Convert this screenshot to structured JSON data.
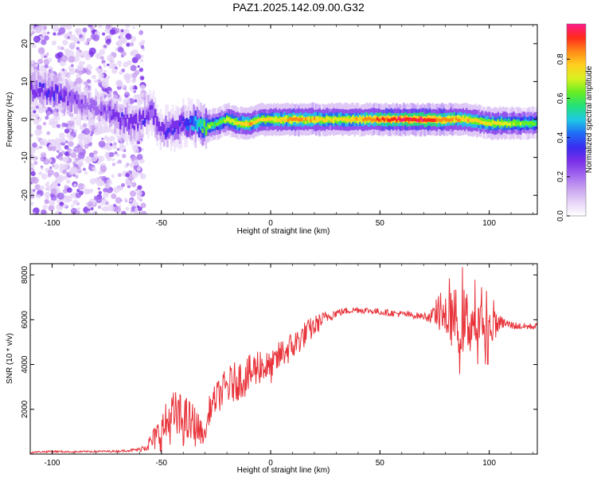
{
  "title": "PAZ1.2025.142.09.00.G32",
  "colors": {
    "snr_line": "#e8333a",
    "colormap": [
      "#ffffff",
      "#e6d4f7",
      "#c8a0f0",
      "#a066f0",
      "#7a2fe8",
      "#3a2cf0",
      "#1f6cf5",
      "#1fc8e6",
      "#22e07a",
      "#66ee22",
      "#d8f020",
      "#ffd020",
      "#ff8a18",
      "#ff2a1a",
      "#ff1a8a"
    ]
  },
  "chart_data": [
    {
      "type": "heatmap",
      "xlabel": "Height of straight line (km)",
      "ylabel": "Frequency (Hz)",
      "xlim": [
        -110,
        122
      ],
      "ylim": [
        -25,
        25
      ],
      "xticks": [
        -100,
        -50,
        0,
        50,
        100
      ],
      "yticks": [
        -20,
        -10,
        0,
        10,
        20
      ],
      "colorbar": {
        "label": "Normalized spectral amplitude",
        "range": [
          0,
          0.98
        ],
        "ticks": [
          "0.0",
          "0.2",
          "0.4",
          "0.6",
          "0.8"
        ]
      },
      "ridge": {
        "x": [
          -108,
          -100,
          -95,
          -85,
          -75,
          -70,
          -62,
          -55,
          -50,
          -45,
          -40,
          -35,
          -30,
          -25,
          -20,
          -15,
          -10,
          -5,
          0,
          10,
          20,
          30,
          40,
          50,
          60,
          70,
          80,
          90,
          100,
          110,
          122
        ],
        "freq": [
          8,
          7,
          6,
          4,
          2,
          0,
          -1,
          2,
          -3,
          -2,
          -1,
          -1,
          -2,
          -1,
          0,
          -1,
          -1,
          0,
          0,
          0,
          0,
          0,
          0,
          0,
          0,
          0,
          0,
          0,
          -1,
          -1,
          -1
        ],
        "amplitude": [
          0.3,
          0.35,
          0.3,
          0.2,
          0.25,
          0.3,
          0.3,
          0.3,
          0.3,
          0.35,
          0.35,
          0.5,
          0.7,
          0.6,
          0.7,
          0.75,
          0.8,
          0.75,
          0.75,
          0.85,
          0.8,
          0.75,
          0.8,
          0.9,
          0.95,
          0.95,
          0.85,
          0.8,
          0.75,
          0.7,
          0.6
        ]
      }
    },
    {
      "type": "line",
      "xlabel": "Height of straight line (km)",
      "ylabel": "SNR (10 * v/v)",
      "xlim": [
        -110,
        122
      ],
      "ylim": [
        0,
        8500
      ],
      "xticks": [
        -100,
        -50,
        0,
        50,
        100
      ],
      "yticks": [
        2000,
        4000,
        6000,
        8000
      ],
      "series": [
        {
          "x": [
            -110,
            -100,
            -90,
            -80,
            -70,
            -60,
            -55,
            -50,
            -45,
            -40,
            -35,
            -30,
            -28,
            -25,
            -22,
            -20,
            -15,
            -10,
            -5,
            0,
            5,
            10,
            15,
            20,
            25,
            30,
            35,
            40,
            45,
            50,
            55,
            60,
            65,
            70,
            75,
            80,
            85,
            90,
            95,
            100,
            105,
            110,
            115,
            122
          ],
          "y": [
            80,
            120,
            100,
            120,
            130,
            200,
            500,
            1000,
            1700,
            1500,
            1300,
            800,
            2000,
            2500,
            2800,
            3000,
            3300,
            3500,
            4000,
            3800,
            4500,
            4800,
            5300,
            5700,
            6100,
            6300,
            6400,
            6450,
            6400,
            6350,
            6300,
            6250,
            6200,
            6150,
            6150,
            6100,
            6000,
            5900,
            5800,
            5600,
            5900,
            5750,
            5700,
            5700
          ],
          "noise": [
            40,
            40,
            40,
            40,
            40,
            80,
            400,
            900,
            1200,
            1200,
            1000,
            300,
            600,
            700,
            800,
            900,
            900,
            900,
            900,
            700,
            700,
            700,
            600,
            500,
            300,
            200,
            150,
            150,
            150,
            150,
            150,
            150,
            150,
            150,
            400,
            900,
            1500,
            1500,
            1100,
            1000,
            300,
            200,
            150,
            150
          ]
        }
      ]
    }
  ]
}
